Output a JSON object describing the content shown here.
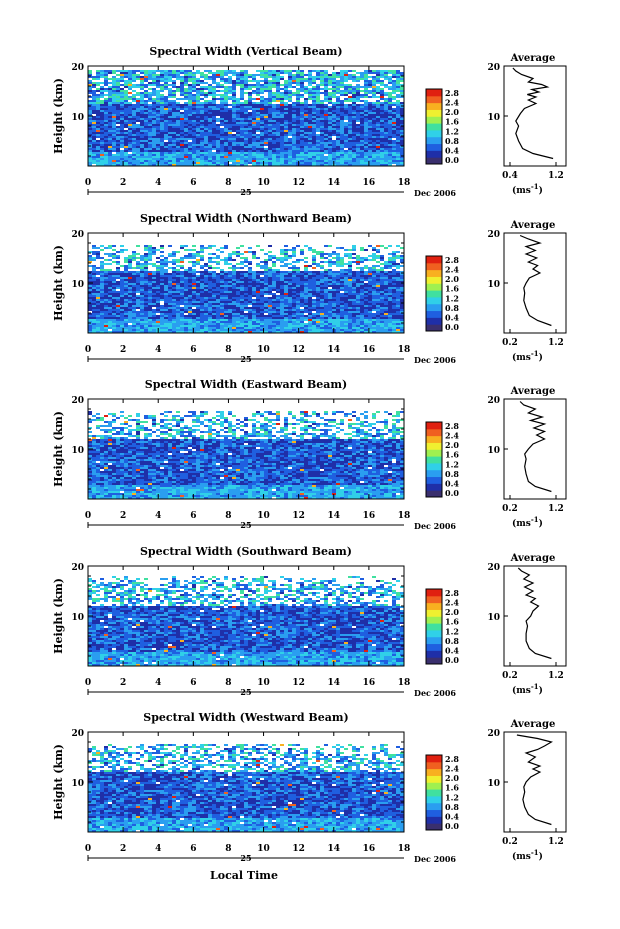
{
  "panels": [
    {
      "title": "Spectral Width (Vertical Beam)",
      "profile_x_ticks": [
        "0.4",
        "1.2"
      ]
    },
    {
      "title": "Spectral Width (Northward Beam)",
      "profile_x_ticks": [
        "0.2",
        "1.2"
      ]
    },
    {
      "title": "Spectral Width (Eastward Beam)",
      "profile_x_ticks": [
        "0.2",
        "1.2"
      ]
    },
    {
      "title": "Spectral Width (Southward Beam)",
      "profile_x_ticks": [
        "0.2",
        "1.2"
      ]
    },
    {
      "title": "Spectral Width (Westward Beam)",
      "profile_x_ticks": [
        "0.2",
        "1.2"
      ]
    }
  ],
  "common": {
    "ylabel": "Height (km)",
    "y_ticks": [
      "20",
      "10"
    ],
    "x_ticks": [
      "0",
      "2",
      "4",
      "6",
      "8",
      "10",
      "12",
      "14",
      "16",
      "18"
    ],
    "day_label": "25",
    "date_label": "Dec 2006",
    "colorbar_unit": "(ms",
    "colorbar_unit_exp": "-1",
    "colorbar_unit_close": ")",
    "colorbar_ticks": [
      "2.8",
      "2.4",
      "2.0",
      "1.6",
      "1.2",
      "0.8",
      "0.4",
      "0.0"
    ],
    "profile_title": "Average",
    "profile_y_ticks": [
      "20",
      "10"
    ],
    "profile_unit": "(ms",
    "profile_unit_exp": "-1",
    "profile_unit_close": ")",
    "xlabel": "Local Time"
  },
  "colors": {
    "colormap": [
      "#3a2f6e",
      "#1f2fa8",
      "#1f5fe0",
      "#2a9ef0",
      "#30d0e8",
      "#40e0a0",
      "#a0f050",
      "#f0f030",
      "#f8b020",
      "#f06020",
      "#e02010"
    ]
  },
  "chart_data": [
    {
      "type": "heatmap",
      "title": "Spectral Width (Vertical Beam)",
      "x_range": [
        0,
        18
      ],
      "y_range": [
        0,
        20
      ],
      "value_range": [
        0.0,
        3.0
      ],
      "profile": {
        "type": "line",
        "title": "Average",
        "x_range": [
          0.4,
          1.2
        ],
        "y_range": [
          0,
          20
        ],
        "points": [
          [
            1.15,
            1.5
          ],
          [
            0.8,
            2.5
          ],
          [
            0.62,
            3.5
          ],
          [
            0.55,
            5
          ],
          [
            0.5,
            6.5
          ],
          [
            0.55,
            8
          ],
          [
            0.5,
            9
          ],
          [
            0.58,
            10.5
          ],
          [
            0.65,
            11.5
          ],
          [
            0.85,
            12.5
          ],
          [
            0.72,
            13.2
          ],
          [
            0.85,
            13.8
          ],
          [
            0.7,
            14.3
          ],
          [
            0.9,
            14.8
          ],
          [
            0.78,
            15.3
          ],
          [
            1.05,
            15.8
          ],
          [
            0.95,
            16.3
          ],
          [
            0.72,
            16.8
          ],
          [
            0.8,
            17.5
          ],
          [
            0.6,
            18.3
          ],
          [
            0.5,
            19
          ],
          [
            0.45,
            19.6
          ]
        ]
      }
    },
    {
      "type": "heatmap",
      "title": "Spectral Width (Northward Beam)",
      "x_range": [
        0,
        18
      ],
      "y_range": [
        0,
        20
      ],
      "value_range": [
        0.0,
        3.0
      ],
      "profile": {
        "type": "line",
        "title": "Average",
        "x_range": [
          0.2,
          1.2
        ],
        "y_range": [
          0,
          20
        ],
        "points": [
          [
            1.1,
            1.5
          ],
          [
            0.8,
            2.5
          ],
          [
            0.62,
            3.5
          ],
          [
            0.55,
            5
          ],
          [
            0.5,
            6.5
          ],
          [
            0.52,
            8
          ],
          [
            0.5,
            9
          ],
          [
            0.55,
            10
          ],
          [
            0.62,
            11
          ],
          [
            0.85,
            12
          ],
          [
            0.7,
            12.8
          ],
          [
            0.8,
            13.5
          ],
          [
            0.6,
            14.2
          ],
          [
            0.78,
            15
          ],
          [
            0.55,
            15.8
          ],
          [
            0.75,
            16.5
          ],
          [
            0.55,
            17.3
          ],
          [
            0.85,
            18
          ],
          [
            0.6,
            18.8
          ],
          [
            0.42,
            19.5
          ]
        ]
      }
    },
    {
      "type": "heatmap",
      "title": "Spectral Width (Eastward Beam)",
      "x_range": [
        0,
        18
      ],
      "y_range": [
        0,
        20
      ],
      "value_range": [
        0.0,
        3.0
      ],
      "profile": {
        "type": "line",
        "title": "Average",
        "x_range": [
          0.2,
          1.2
        ],
        "y_range": [
          0,
          20
        ],
        "points": [
          [
            1.1,
            1.5
          ],
          [
            0.75,
            2.5
          ],
          [
            0.6,
            3.5
          ],
          [
            0.55,
            5
          ],
          [
            0.52,
            6.5
          ],
          [
            0.55,
            8
          ],
          [
            0.52,
            9
          ],
          [
            0.6,
            10
          ],
          [
            0.7,
            11
          ],
          [
            0.95,
            12
          ],
          [
            0.78,
            12.8
          ],
          [
            0.95,
            13.5
          ],
          [
            0.72,
            14.2
          ],
          [
            0.95,
            15
          ],
          [
            0.65,
            15.7
          ],
          [
            0.9,
            16.4
          ],
          [
            0.6,
            17.2
          ],
          [
            0.75,
            18
          ],
          [
            0.5,
            18.8
          ],
          [
            0.42,
            19.5
          ]
        ]
      }
    },
    {
      "type": "heatmap",
      "title": "Spectral Width (Southward Beam)",
      "x_range": [
        0,
        18
      ],
      "y_range": [
        0,
        20
      ],
      "value_range": [
        0.0,
        3.0
      ],
      "profile": {
        "type": "line",
        "title": "Average",
        "x_range": [
          0.2,
          1.2
        ],
        "y_range": [
          0,
          20
        ],
        "points": [
          [
            1.1,
            1.5
          ],
          [
            0.75,
            2.5
          ],
          [
            0.62,
            3.5
          ],
          [
            0.55,
            5
          ],
          [
            0.55,
            6.5
          ],
          [
            0.58,
            8
          ],
          [
            0.55,
            9
          ],
          [
            0.65,
            10
          ],
          [
            0.7,
            11
          ],
          [
            0.82,
            12
          ],
          [
            0.65,
            12.8
          ],
          [
            0.75,
            13.5
          ],
          [
            0.55,
            14.2
          ],
          [
            0.7,
            15
          ],
          [
            0.52,
            15.8
          ],
          [
            0.7,
            16.6
          ],
          [
            0.5,
            17.4
          ],
          [
            0.62,
            18.2
          ],
          [
            0.45,
            19
          ],
          [
            0.38,
            19.6
          ]
        ]
      }
    },
    {
      "type": "heatmap",
      "title": "Spectral Width (Westward Beam)",
      "x_range": [
        0,
        18
      ],
      "y_range": [
        0,
        20
      ],
      "value_range": [
        0.0,
        3.0
      ],
      "profile": {
        "type": "line",
        "title": "Average",
        "x_range": [
          0.2,
          1.2
        ],
        "y_range": [
          0,
          20
        ],
        "points": [
          [
            1.1,
            1.5
          ],
          [
            0.75,
            2.5
          ],
          [
            0.6,
            3.5
          ],
          [
            0.52,
            5
          ],
          [
            0.48,
            6.5
          ],
          [
            0.52,
            8
          ],
          [
            0.5,
            9
          ],
          [
            0.55,
            10
          ],
          [
            0.65,
            11
          ],
          [
            0.85,
            12
          ],
          [
            0.7,
            12.6
          ],
          [
            0.85,
            13.2
          ],
          [
            0.6,
            14
          ],
          [
            0.75,
            15
          ],
          [
            0.55,
            15.8
          ],
          [
            0.8,
            16.5
          ],
          [
            0.95,
            17.2
          ],
          [
            1.1,
            18
          ],
          [
            0.8,
            18.7
          ],
          [
            0.35,
            19.4
          ]
        ]
      }
    }
  ]
}
